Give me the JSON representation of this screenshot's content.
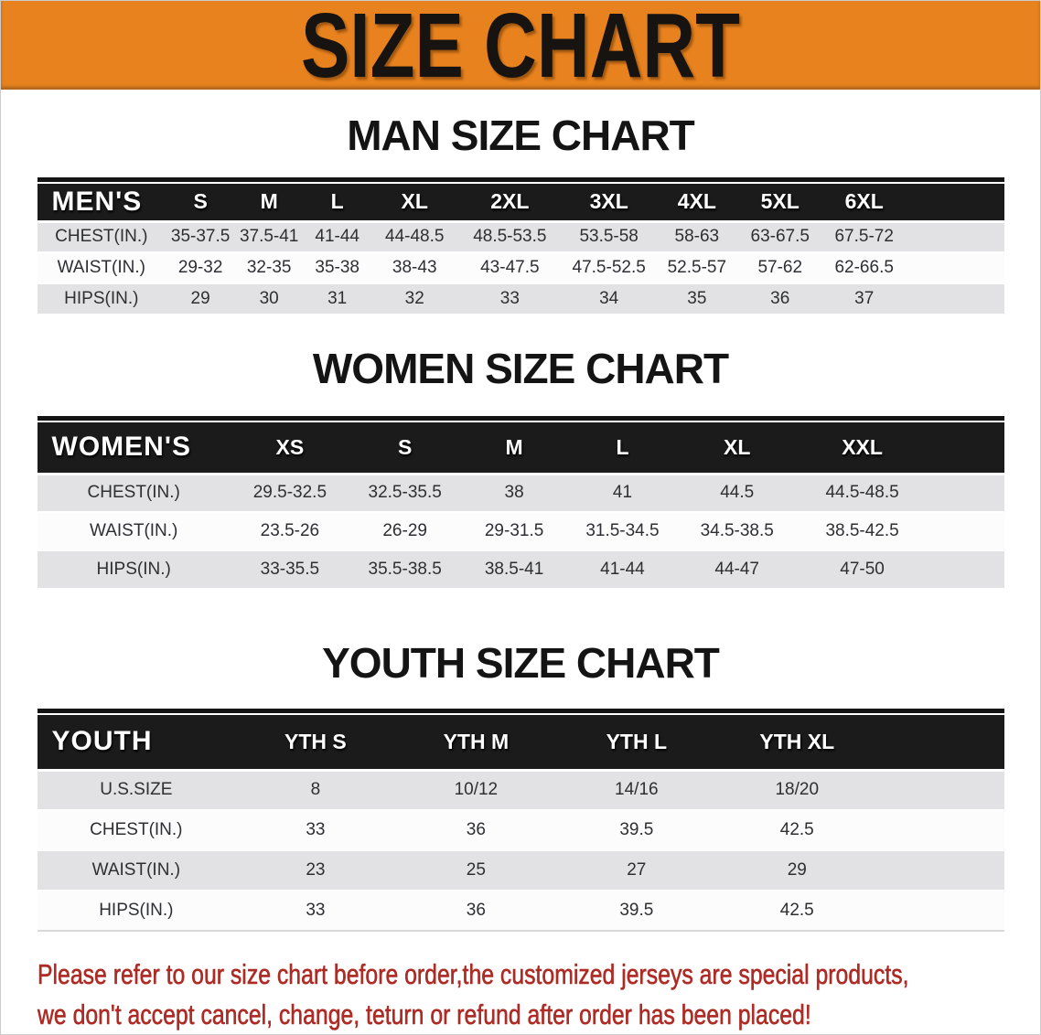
{
  "banner": {
    "title": "SIZE CHART",
    "bg_color": "#E8821E",
    "text_color": "#171310"
  },
  "sections": [
    {
      "id": "men",
      "heading": "MAN SIZE CHART",
      "table": {
        "name": "mens-size-table",
        "header_label": "MEN'S",
        "sizes": [
          "S",
          "M",
          "L",
          "XL",
          "2XL",
          "3XL",
          "4XL",
          "5XL",
          "6XL"
        ],
        "col_widths_pct": [
          13.3,
          7.2,
          7.0,
          7.1,
          8.9,
          10.8,
          9.7,
          8.5,
          8.7,
          8.7,
          10.1
        ],
        "rows": [
          {
            "label": "CHEST(IN.)",
            "values": [
              "35-37.5",
              "37.5-41",
              "41-44",
              "44-48.5",
              "48.5-53.5",
              "53.5-58",
              "58-63",
              "63-67.5",
              "67.5-72"
            ]
          },
          {
            "label": "WAIST(IN.)",
            "values": [
              "29-32",
              "32-35",
              "35-38",
              "38-43",
              "43-47.5",
              "47.5-52.5",
              "52.5-57",
              "57-62",
              "62-66.5"
            ]
          },
          {
            "label": "HIPS(IN.)",
            "values": [
              "29",
              "30",
              "31",
              "32",
              "33",
              "34",
              "35",
              "36",
              "37"
            ]
          }
        ]
      }
    },
    {
      "id": "women",
      "heading": "WOMEN SIZE CHART",
      "table": {
        "name": "womens-size-table",
        "header_label": "WOMEN'S",
        "sizes": [
          "XS",
          "S",
          "M",
          "L",
          "XL",
          "XXL"
        ],
        "col_widths_pct": [
          20.0,
          12.3,
          11.5,
          11.1,
          11.3,
          12.4,
          13.5,
          7.9
        ],
        "rows": [
          {
            "label": "CHEST(IN.)",
            "values": [
              "29.5-32.5",
              "32.5-35.5",
              "38",
              "41",
              "44.5",
              "44.5-48.5"
            ]
          },
          {
            "label": "WAIST(IN.)",
            "values": [
              "23.5-26",
              "26-29",
              "29-31.5",
              "31.5-34.5",
              "34.5-38.5",
              "38.5-42.5"
            ]
          },
          {
            "label": "HIPS(IN.)",
            "values": [
              "33-35.5",
              "35.5-38.5",
              "38.5-41",
              "41-44",
              "44-47",
              "47-50"
            ]
          }
        ]
      }
    },
    {
      "id": "youth",
      "heading": "YOUTH SIZE CHART",
      "table": {
        "name": "youth-size-table",
        "header_label": "YOUTH",
        "sizes": [
          "YTH S",
          "YTH M",
          "YTH L",
          "YTH XL"
        ],
        "col_widths_pct": [
          20.5,
          16.6,
          16.6,
          16.6,
          16.6,
          13.1
        ],
        "rows": [
          {
            "label": "U.S.SIZE",
            "values": [
              "8",
              "10/12",
              "14/16",
              "18/20"
            ]
          },
          {
            "label": "CHEST(IN.)",
            "values": [
              "33",
              "36",
              "39.5",
              "42.5"
            ]
          },
          {
            "label": "WAIST(IN.)",
            "values": [
              "23",
              "25",
              "27",
              "29"
            ]
          },
          {
            "label": "HIPS(IN.)",
            "values": [
              "33",
              "36",
              "39.5",
              "42.5"
            ]
          }
        ]
      }
    }
  ],
  "footer": {
    "line1": "Please refer to our size chart before order,the customized jerseys are special products,",
    "line2": "we don't accept cancel, change, teturn or refund after order has been placed!",
    "text_color": "#AE2A24"
  },
  "colors": {
    "banner_orange": "#E8821E",
    "header_bar_black": "#1B1B1B",
    "stripe_gray": "#E2E2E4",
    "stripe_white": "#FCFCFD"
  }
}
